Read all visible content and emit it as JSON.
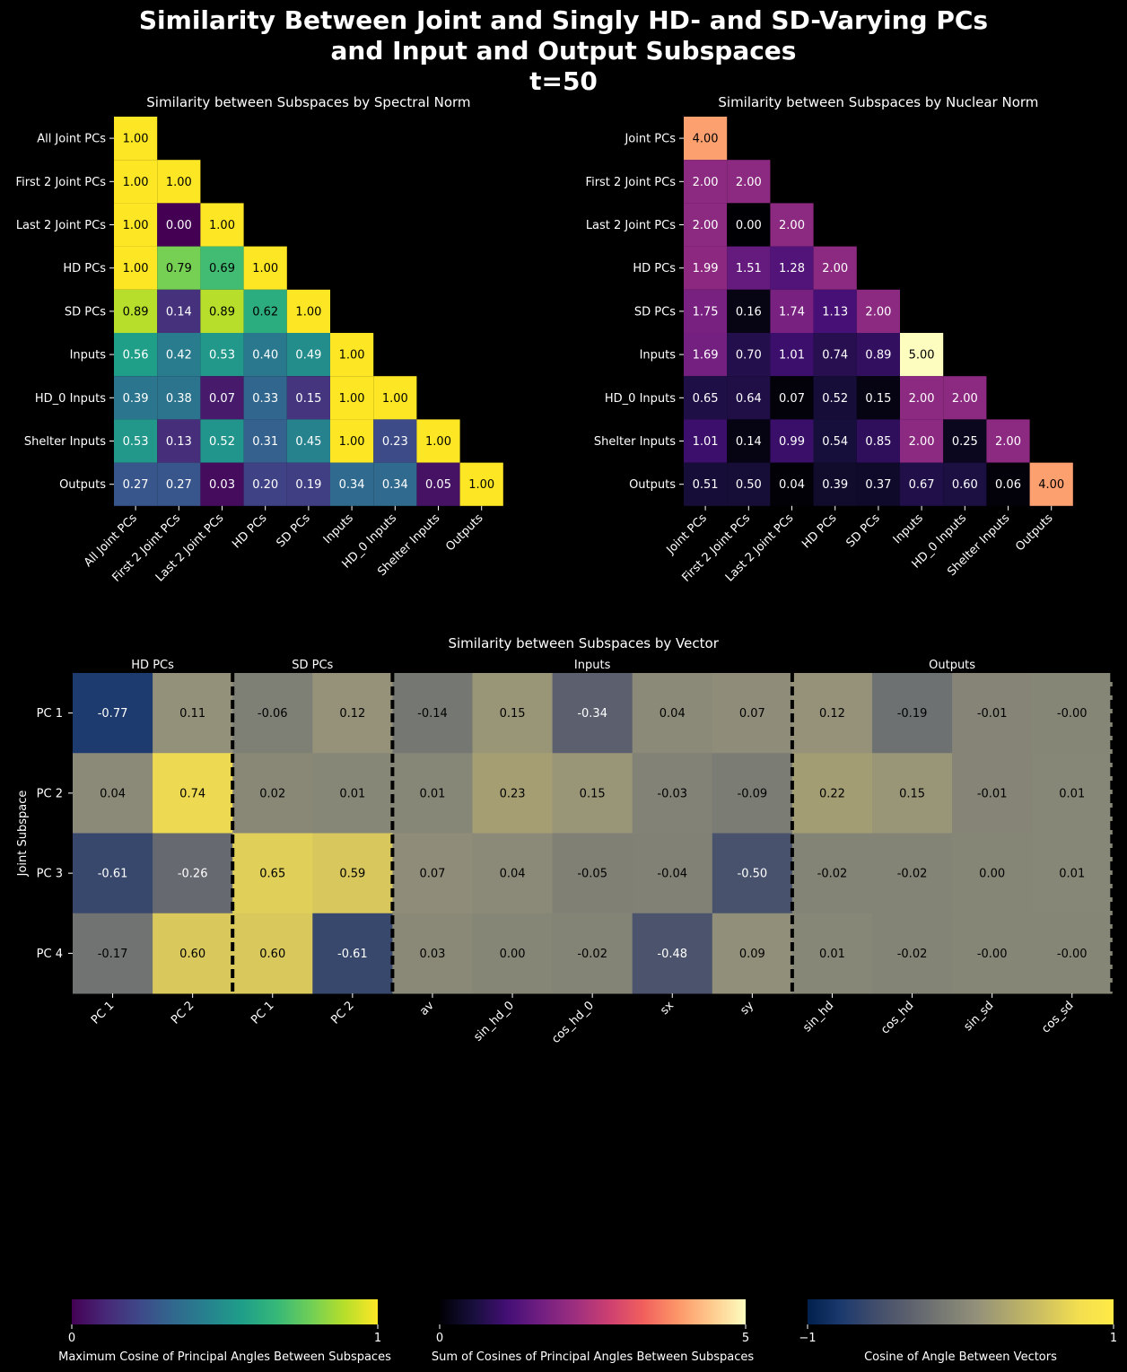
{
  "figure": {
    "title_lines": [
      "Similarity Between Joint and Singly HD- and SD-Varying PCs",
      "and Input and Output Subspaces",
      "t=50"
    ]
  },
  "colors": {
    "background": "#000000",
    "text": "#ffffff",
    "divider": "#000000"
  },
  "chart_data": [
    {
      "type": "heatmap",
      "title": "Similarity between Subspaces by Spectral Norm",
      "colormap": "viridis",
      "vmin": 0,
      "vmax": 1,
      "mask": "upper-triangle",
      "row_labels": [
        "All Joint PCs",
        "First 2 Joint PCs",
        "Last 2 Joint PCs",
        "HD PCs",
        "SD PCs",
        "Inputs",
        "HD_0 Inputs",
        "Shelter Inputs",
        "Outputs"
      ],
      "col_labels": [
        "All Joint PCs",
        "First 2 Joint PCs",
        "Last 2 Joint PCs",
        "HD PCs",
        "SD PCs",
        "Inputs",
        "HD_0 Inputs",
        "Shelter Inputs",
        "Outputs"
      ],
      "values": [
        [
          1.0
        ],
        [
          1.0,
          1.0
        ],
        [
          1.0,
          0.0,
          1.0
        ],
        [
          1.0,
          0.79,
          0.69,
          1.0
        ],
        [
          0.89,
          0.14,
          0.89,
          0.62,
          1.0
        ],
        [
          0.56,
          0.42,
          0.53,
          0.4,
          0.49,
          1.0
        ],
        [
          0.39,
          0.38,
          0.07,
          0.33,
          0.15,
          1.0,
          1.0
        ],
        [
          0.53,
          0.13,
          0.52,
          0.31,
          0.45,
          1.0,
          0.23,
          1.0
        ],
        [
          0.27,
          0.27,
          0.03,
          0.2,
          0.19,
          0.34,
          0.34,
          0.05,
          1.0
        ]
      ],
      "colorbar": {
        "label": "Maximum Cosine of Principal Angles Between Subspaces",
        "ticks": [
          "0",
          "1"
        ]
      }
    },
    {
      "type": "heatmap",
      "title": "Similarity between Subspaces by Nuclear Norm",
      "colormap": "magma",
      "vmin": 0,
      "vmax": 5,
      "mask": "upper-triangle",
      "row_labels": [
        "Joint PCs",
        "First 2 Joint PCs",
        "Last 2 Joint PCs",
        "HD PCs",
        "SD PCs",
        "Inputs",
        "HD_0 Inputs",
        "Shelter Inputs",
        "Outputs"
      ],
      "col_labels": [
        "Joint PCs",
        "First 2 Joint PCs",
        "Last 2 Joint PCs",
        "HD PCs",
        "SD PCs",
        "Inputs",
        "HD_0 Inputs",
        "Shelter Inputs",
        "Outputs"
      ],
      "values": [
        [
          4.0
        ],
        [
          2.0,
          2.0
        ],
        [
          2.0,
          0.0,
          2.0
        ],
        [
          1.99,
          1.51,
          1.28,
          2.0
        ],
        [
          1.75,
          0.16,
          1.74,
          1.13,
          2.0
        ],
        [
          1.69,
          0.7,
          1.01,
          0.74,
          0.89,
          5.0
        ],
        [
          0.65,
          0.64,
          0.07,
          0.52,
          0.15,
          2.0,
          2.0
        ],
        [
          1.01,
          0.14,
          0.99,
          0.54,
          0.85,
          2.0,
          0.25,
          2.0
        ],
        [
          0.51,
          0.5,
          0.04,
          0.39,
          0.37,
          0.67,
          0.6,
          0.06,
          4.0
        ]
      ],
      "colorbar": {
        "label": "Sum of Cosines of Principal Angles Between Subspaces",
        "ticks": [
          "0",
          "5"
        ]
      }
    },
    {
      "type": "heatmap",
      "title": "Similarity between Subspaces by Vector",
      "colormap": "cividis",
      "vmin": -1,
      "vmax": 1,
      "ylabel": "Joint Subspace",
      "row_labels": [
        "PC 1",
        "PC 2",
        "PC 3",
        "PC 4"
      ],
      "groups": [
        {
          "name": "HD PCs",
          "cols": [
            "PC 1",
            "PC 2"
          ]
        },
        {
          "name": "SD PCs",
          "cols": [
            "PC 1",
            "PC 2"
          ]
        },
        {
          "name": "Inputs",
          "cols": [
            "av",
            "sin_hd_0",
            "cos_hd_0",
            "sx",
            "sy"
          ]
        },
        {
          "name": "Outputs",
          "cols": [
            "sin_hd",
            "cos_hd",
            "sin_sd",
            "cos_sd"
          ]
        }
      ],
      "values": [
        [
          -0.77,
          0.11,
          -0.06,
          0.12,
          -0.14,
          0.15,
          -0.34,
          0.04,
          0.07,
          0.12,
          -0.19,
          -0.01,
          -0.0
        ],
        [
          0.04,
          0.74,
          0.02,
          0.01,
          0.01,
          0.23,
          0.15,
          -0.03,
          -0.09,
          0.22,
          0.15,
          -0.01,
          0.01
        ],
        [
          -0.61,
          -0.26,
          0.65,
          0.59,
          0.07,
          0.04,
          -0.05,
          -0.04,
          -0.5,
          -0.02,
          -0.02,
          0.0,
          0.01
        ],
        [
          -0.17,
          0.6,
          0.6,
          -0.61,
          0.03,
          0.0,
          -0.02,
          -0.48,
          0.09,
          0.01,
          -0.02,
          -0.0,
          -0.0
        ]
      ],
      "colorbar": {
        "label": "Cosine of Angle Between Vectors",
        "ticks": [
          "−1",
          "1"
        ]
      }
    }
  ]
}
